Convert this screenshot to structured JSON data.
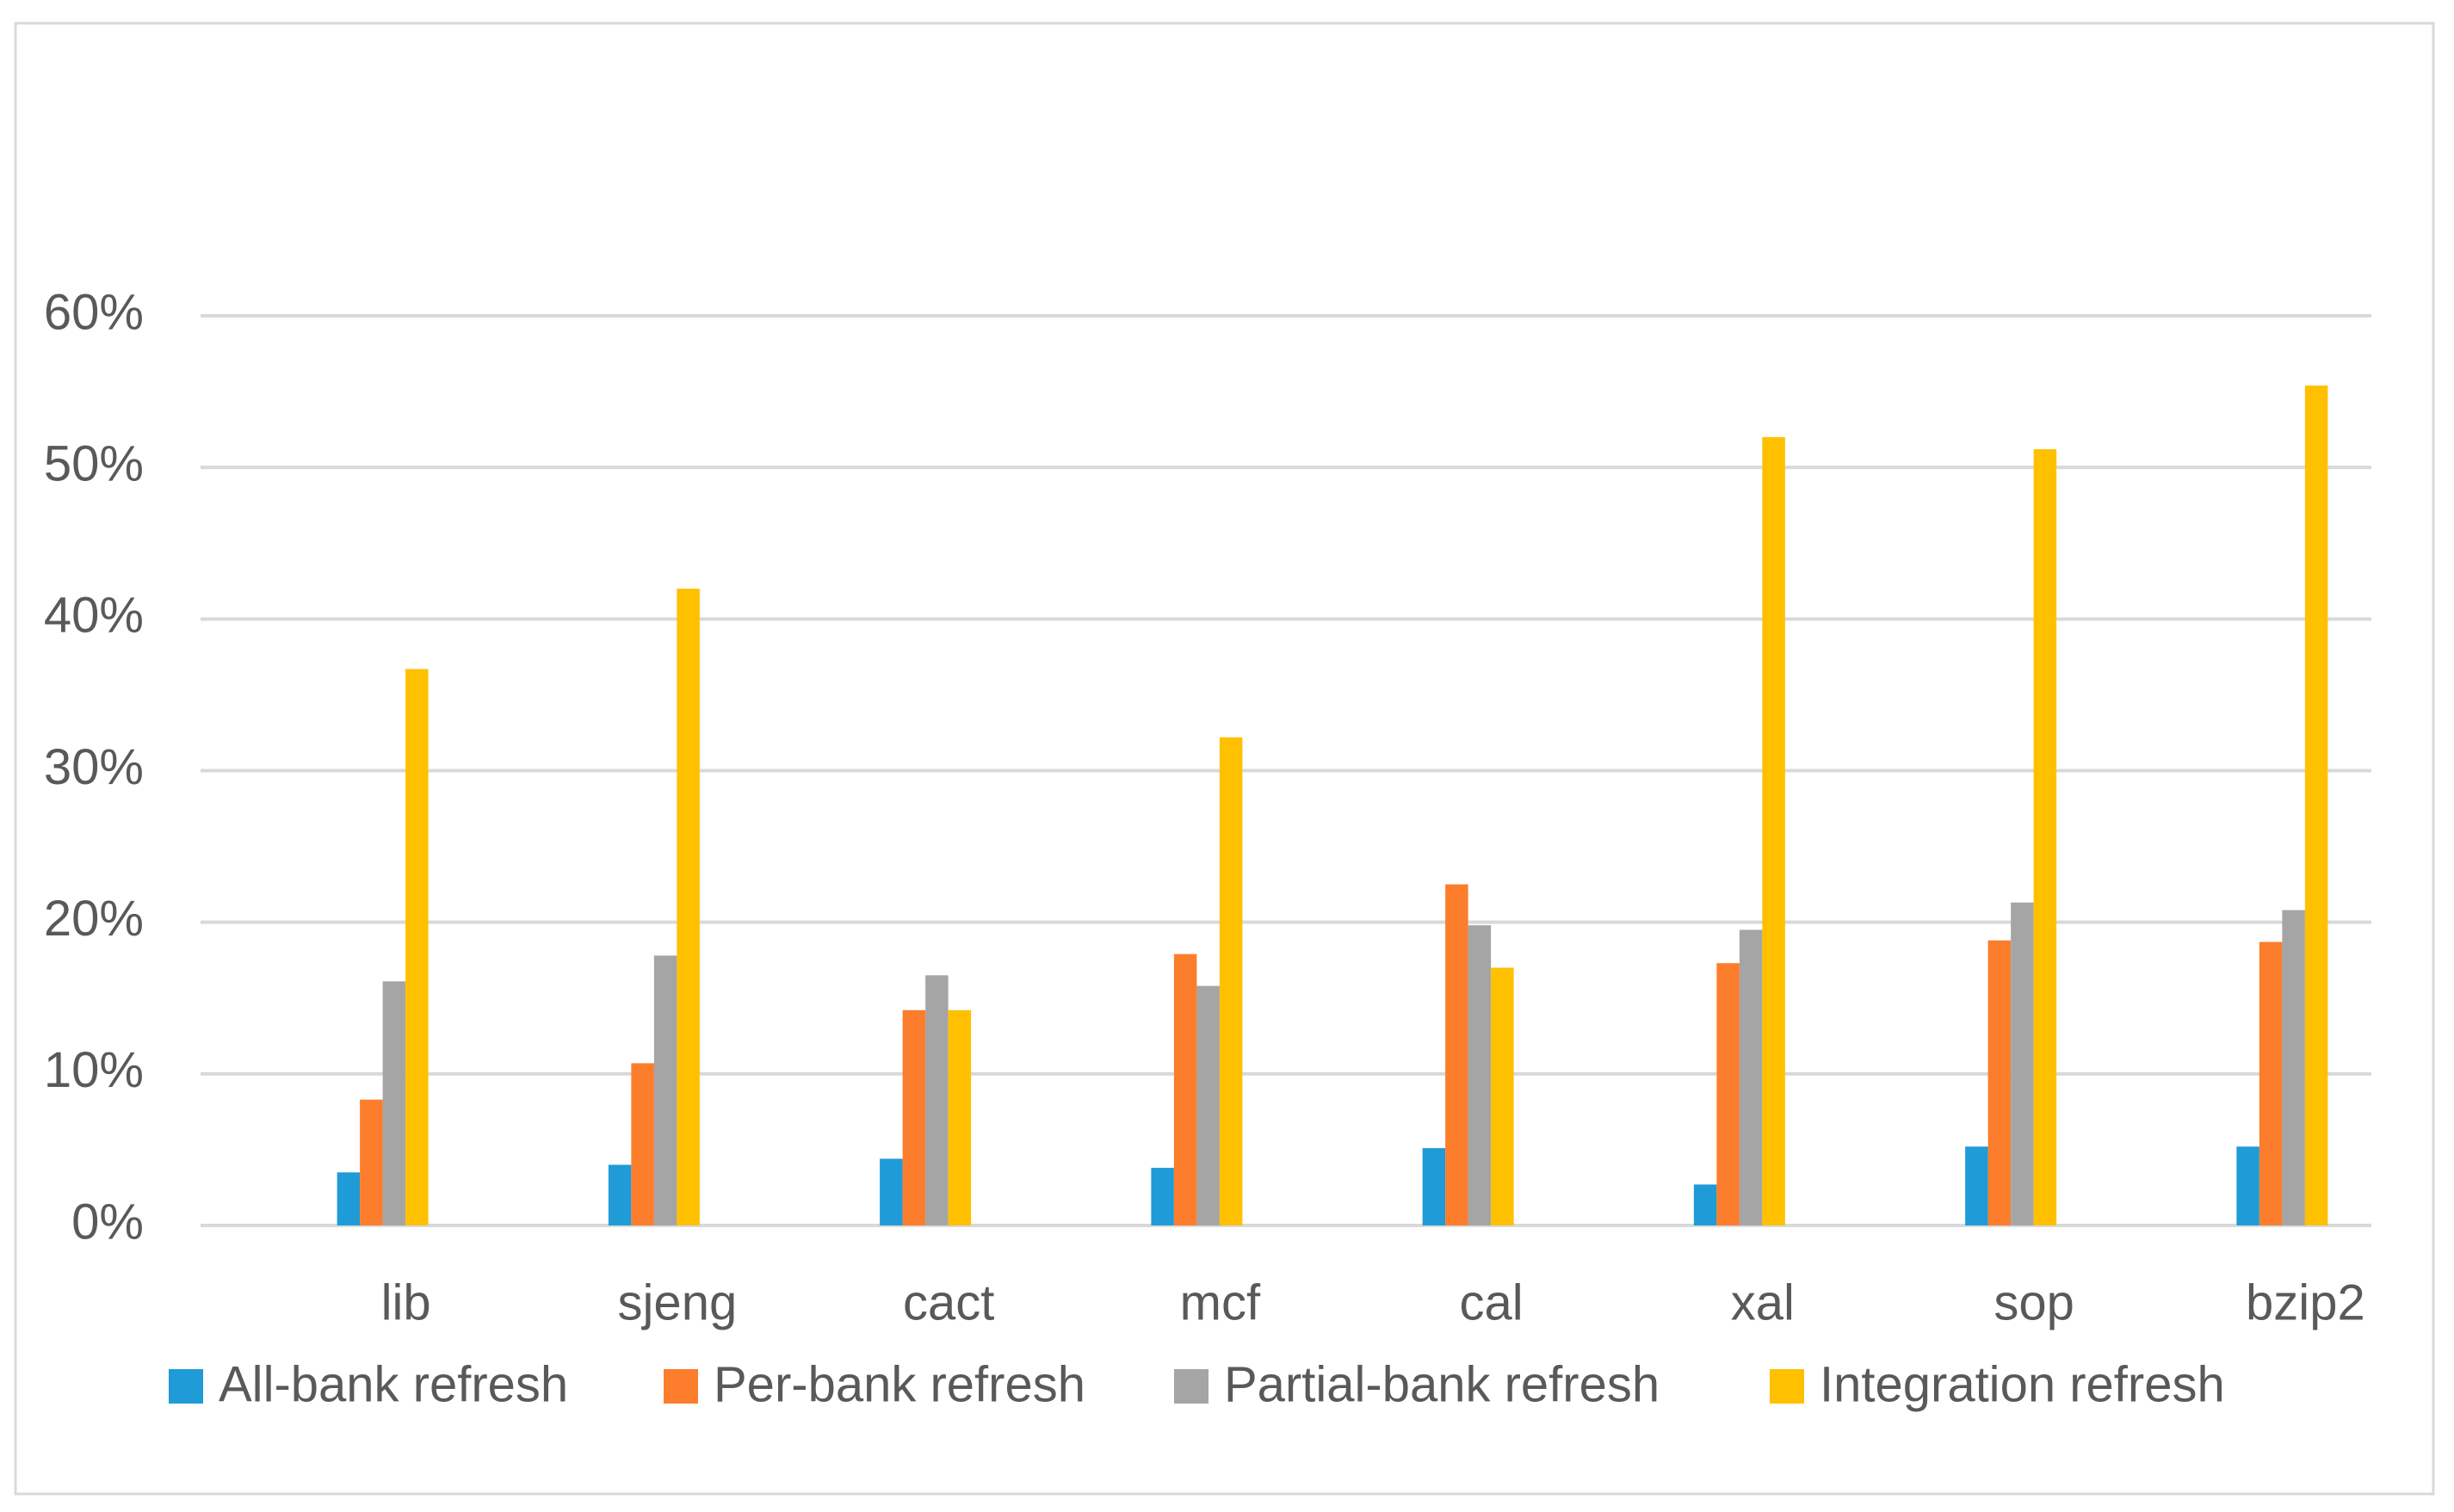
{
  "chart_data": {
    "type": "bar",
    "categories": [
      "lib",
      "sjeng",
      "cact",
      "mcf",
      "cal",
      "xal",
      "sop",
      "bzip2"
    ],
    "series": [
      {
        "name": "All-bank refresh",
        "color": "#1f9bd7",
        "values": [
          3.5,
          4.0,
          4.4,
          3.8,
          5.1,
          2.7,
          5.2,
          5.2
        ]
      },
      {
        "name": "Per-bank refresh",
        "color": "#fc7d2c",
        "values": [
          8.3,
          10.7,
          14.2,
          17.9,
          22.5,
          17.3,
          18.8,
          18.7
        ]
      },
      {
        "name": "Partial-bank refresh",
        "color": "#a5a5a5",
        "values": [
          16.1,
          17.8,
          16.5,
          15.8,
          19.8,
          19.5,
          21.3,
          20.8
        ]
      },
      {
        "name": "Integration refresh",
        "color": "#ffc000",
        "values": [
          36.7,
          42.0,
          14.2,
          32.2,
          17.0,
          52.0,
          51.2,
          55.4
        ]
      }
    ],
    "ylim": [
      0,
      60
    ],
    "yticks": [
      {
        "value": 0,
        "label": "0%"
      },
      {
        "value": 10,
        "label": "10%"
      },
      {
        "value": 20,
        "label": "20%"
      },
      {
        "value": 30,
        "label": "30%"
      },
      {
        "value": 40,
        "label": "40%"
      },
      {
        "value": 50,
        "label": "50%"
      },
      {
        "value": 60,
        "label": "60%"
      }
    ],
    "grid": true,
    "legend": "bottom"
  }
}
